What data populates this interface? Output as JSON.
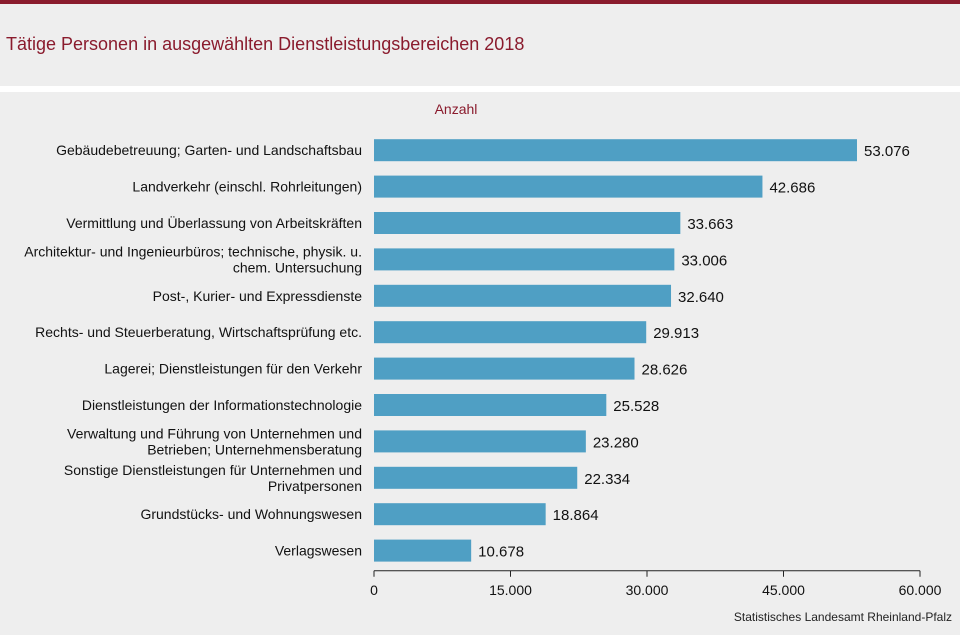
{
  "header": {
    "title": "Tätige Personen in ausgewählten Dienstleistungsbereichen 2018"
  },
  "footer": {
    "source": "Statistisches Landesamt Rheinland-Pfalz"
  },
  "colors": {
    "bar": "#4f9fc4",
    "accent": "#8a1b2d",
    "background": "#eeeeee"
  },
  "chart_data": {
    "type": "bar",
    "orientation": "horizontal",
    "title": "Tätige Personen in ausgewählten Dienstleistungsbereichen 2018",
    "xlabel": "Anzahl",
    "ylabel": "",
    "xlim": [
      0,
      60000
    ],
    "xticks": [
      0,
      15000,
      30000,
      45000,
      60000
    ],
    "xtick_labels": [
      "0",
      "15.000",
      "30.000",
      "45.000",
      "60.000"
    ],
    "grid": false,
    "categories": [
      [
        "Gebäudebetreuung; Garten- und Landschaftsbau"
      ],
      [
        "Landverkehr (einschl. Rohrleitungen)"
      ],
      [
        "Vermittlung und Überlassung von Arbeitskräften"
      ],
      [
        "Architektur- und Ingenieurbüros; technische, physik. u.",
        "chem. Untersuchung"
      ],
      [
        "Post-, Kurier- und Expressdienste"
      ],
      [
        "Rechts- und Steuerberatung, Wirtschaftsprüfung etc."
      ],
      [
        "Lagerei; Dienstleistungen für den Verkehr"
      ],
      [
        "Dienstleistungen der Informationstechnologie"
      ],
      [
        "Verwaltung und Führung von Unternehmen und",
        "Betrieben; Unternehmensberatung"
      ],
      [
        "Sonstige Dienstleistungen für Unternehmen und",
        "Privatpersonen"
      ],
      [
        "Grundstücks- und Wohnungswesen"
      ],
      [
        "Verlagswesen"
      ]
    ],
    "values": [
      53076,
      42686,
      33663,
      33006,
      32640,
      29913,
      28626,
      25528,
      23280,
      22334,
      18864,
      10678
    ],
    "value_labels": [
      "53.076",
      "42.686",
      "33.663",
      "33.006",
      "32.640",
      "29.913",
      "28.626",
      "25.528",
      "23.280",
      "22.334",
      "18.864",
      "10.678"
    ]
  }
}
